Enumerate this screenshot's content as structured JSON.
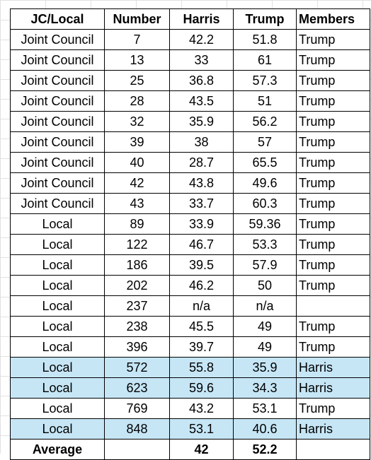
{
  "table": {
    "headers": [
      "JC/Local",
      "Number",
      "Harris",
      "Trump",
      "Members"
    ],
    "rows": [
      {
        "type": "Joint Council",
        "number": "7",
        "harris": "42.2",
        "trump": "51.8",
        "members": "Trump",
        "highlight": false
      },
      {
        "type": "Joint Council",
        "number": "13",
        "harris": "33",
        "trump": "61",
        "members": "Trump",
        "highlight": false
      },
      {
        "type": "Joint Council",
        "number": "25",
        "harris": "36.8",
        "trump": "57.3",
        "members": "Trump",
        "highlight": false
      },
      {
        "type": "Joint Council",
        "number": "28",
        "harris": "43.5",
        "trump": "51",
        "members": "Trump",
        "highlight": false
      },
      {
        "type": "Joint Council",
        "number": "32",
        "harris": "35.9",
        "trump": "56.2",
        "members": "Trump",
        "highlight": false
      },
      {
        "type": "Joint Council",
        "number": "39",
        "harris": "38",
        "trump": "57",
        "members": "Trump",
        "highlight": false
      },
      {
        "type": "Joint Council",
        "number": "40",
        "harris": "28.7",
        "trump": "65.5",
        "members": "Trump",
        "highlight": false
      },
      {
        "type": "Joint Council",
        "number": "42",
        "harris": "43.8",
        "trump": "49.6",
        "members": "Trump",
        "highlight": false
      },
      {
        "type": "Joint Council",
        "number": "43",
        "harris": "33.7",
        "trump": "60.3",
        "members": "Trump",
        "highlight": false
      },
      {
        "type": "Local",
        "number": "89",
        "harris": "33.9",
        "trump": "59.36",
        "members": "Trump",
        "highlight": false
      },
      {
        "type": "Local",
        "number": "122",
        "harris": "46.7",
        "trump": "53.3",
        "members": "Trump",
        "highlight": false
      },
      {
        "type": "Local",
        "number": "186",
        "harris": "39.5",
        "trump": "57.9",
        "members": "Trump",
        "highlight": false
      },
      {
        "type": "Local",
        "number": "202",
        "harris": "46.2",
        "trump": "50",
        "members": "Trump",
        "highlight": false
      },
      {
        "type": "Local",
        "number": "237",
        "harris": "n/a",
        "trump": "n/a",
        "members": "",
        "highlight": false
      },
      {
        "type": "Local",
        "number": "238",
        "harris": "45.5",
        "trump": "49",
        "members": "Trump",
        "highlight": false
      },
      {
        "type": "Local",
        "number": "396",
        "harris": "39.7",
        "trump": "49",
        "members": "Trump",
        "highlight": false
      },
      {
        "type": "Local",
        "number": "572",
        "harris": "55.8",
        "trump": "35.9",
        "members": "Harris",
        "highlight": true
      },
      {
        "type": "Local",
        "number": "623",
        "harris": "59.6",
        "trump": "34.3",
        "members": "Harris",
        "highlight": true
      },
      {
        "type": "Local",
        "number": "769",
        "harris": "43.2",
        "trump": "53.1",
        "members": "Trump",
        "highlight": false
      },
      {
        "type": "Local",
        "number": "848",
        "harris": "53.1",
        "trump": "40.6",
        "members": "Harris",
        "highlight": true
      }
    ],
    "average": {
      "label": "Average",
      "number": "",
      "harris": "42",
      "trump": "52.2",
      "members": ""
    }
  },
  "colors": {
    "highlight": "#c6e6f6",
    "border": "#000000",
    "gridline": "#e1e1e1"
  }
}
